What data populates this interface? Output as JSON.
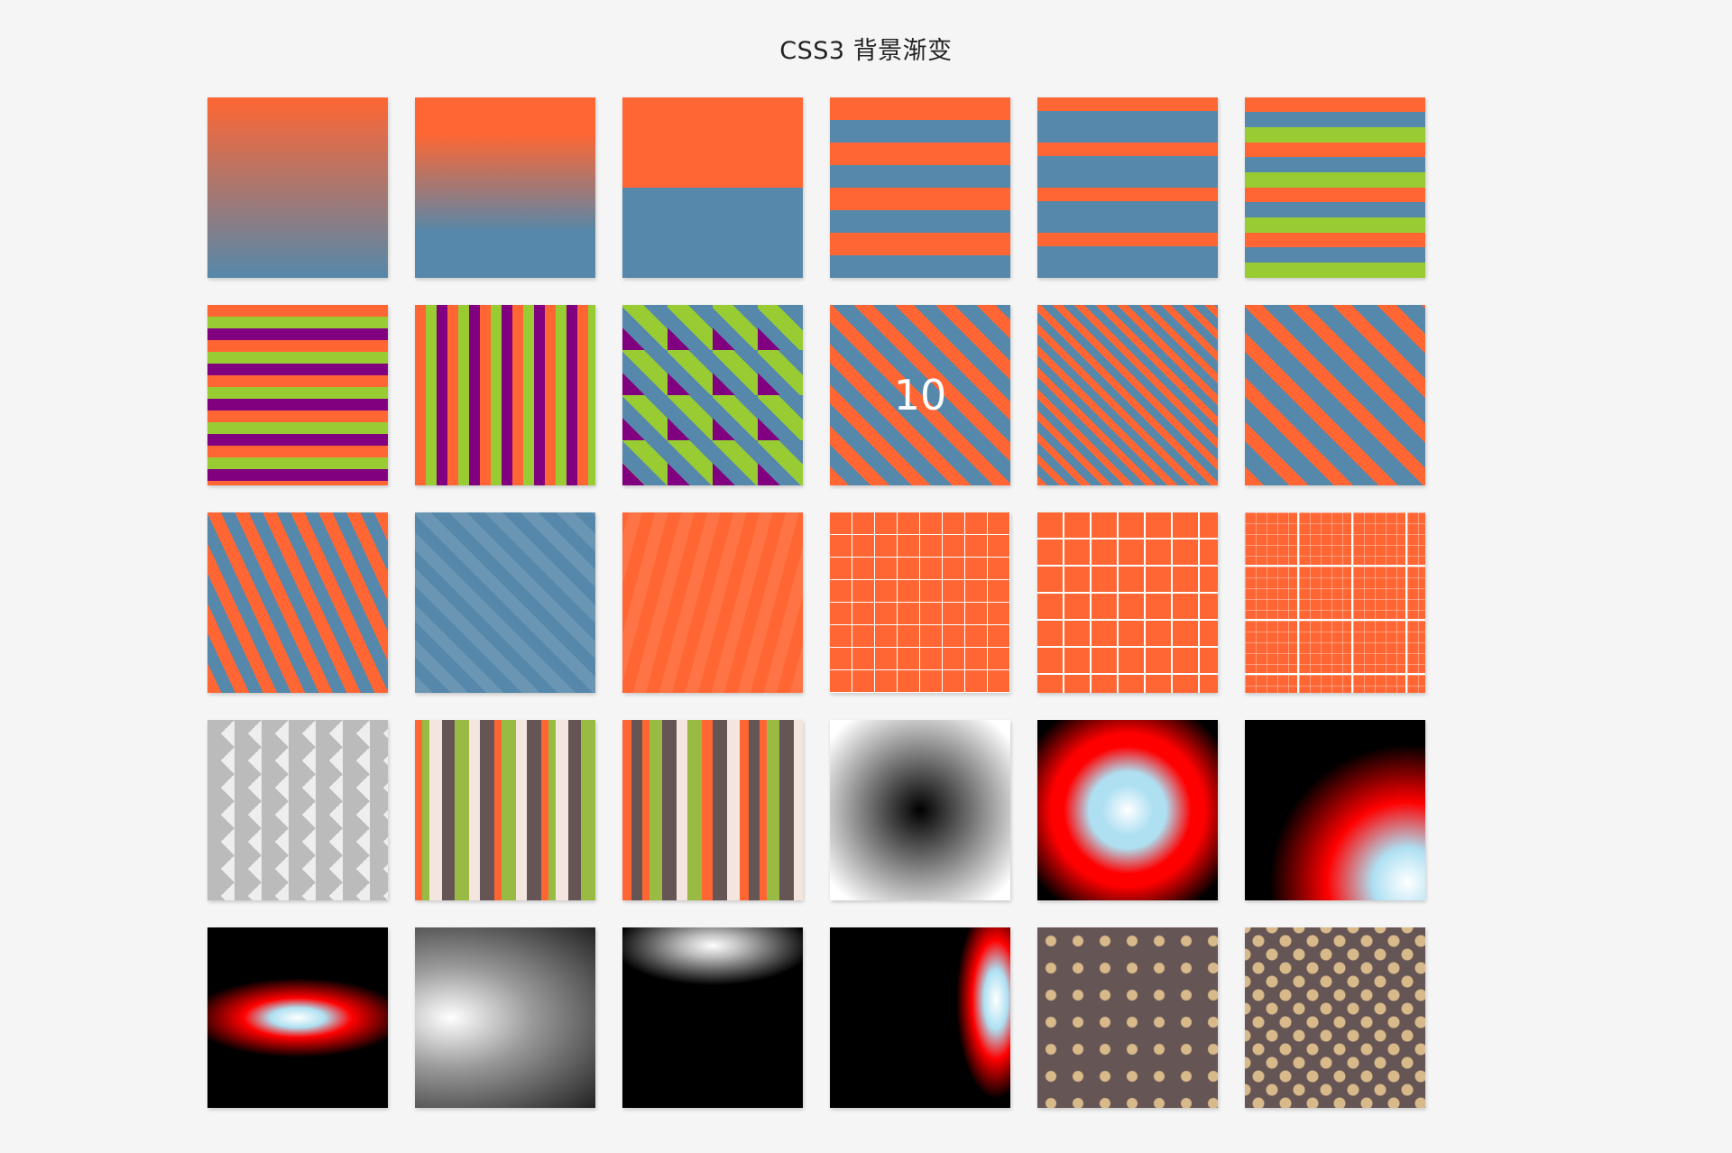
{
  "header": {
    "title": "CSS3 背景渐变"
  },
  "colors": {
    "orange": "#ff6633",
    "blue": "#5588aa",
    "green": "#99cc33",
    "purple": "#800080",
    "cream": "#f3e6df",
    "brown": "#665555",
    "gold": "#d8b98a",
    "background": "#f5f5f5"
  },
  "tiles": [
    {
      "label": ""
    },
    {
      "label": ""
    },
    {
      "label": ""
    },
    {
      "label": ""
    },
    {
      "label": ""
    },
    {
      "label": ""
    },
    {
      "label": ""
    },
    {
      "label": ""
    },
    {
      "label": ""
    },
    {
      "label": "10"
    },
    {
      "label": ""
    },
    {
      "label": ""
    },
    {
      "label": ""
    },
    {
      "label": ""
    },
    {
      "label": ""
    },
    {
      "label": ""
    },
    {
      "label": ""
    },
    {
      "label": ""
    },
    {
      "label": ""
    },
    {
      "label": ""
    },
    {
      "label": ""
    },
    {
      "label": ""
    },
    {
      "label": ""
    },
    {
      "label": ""
    },
    {
      "label": ""
    },
    {
      "label": ""
    },
    {
      "label": ""
    },
    {
      "label": ""
    },
    {
      "label": ""
    },
    {
      "label": ""
    }
  ]
}
